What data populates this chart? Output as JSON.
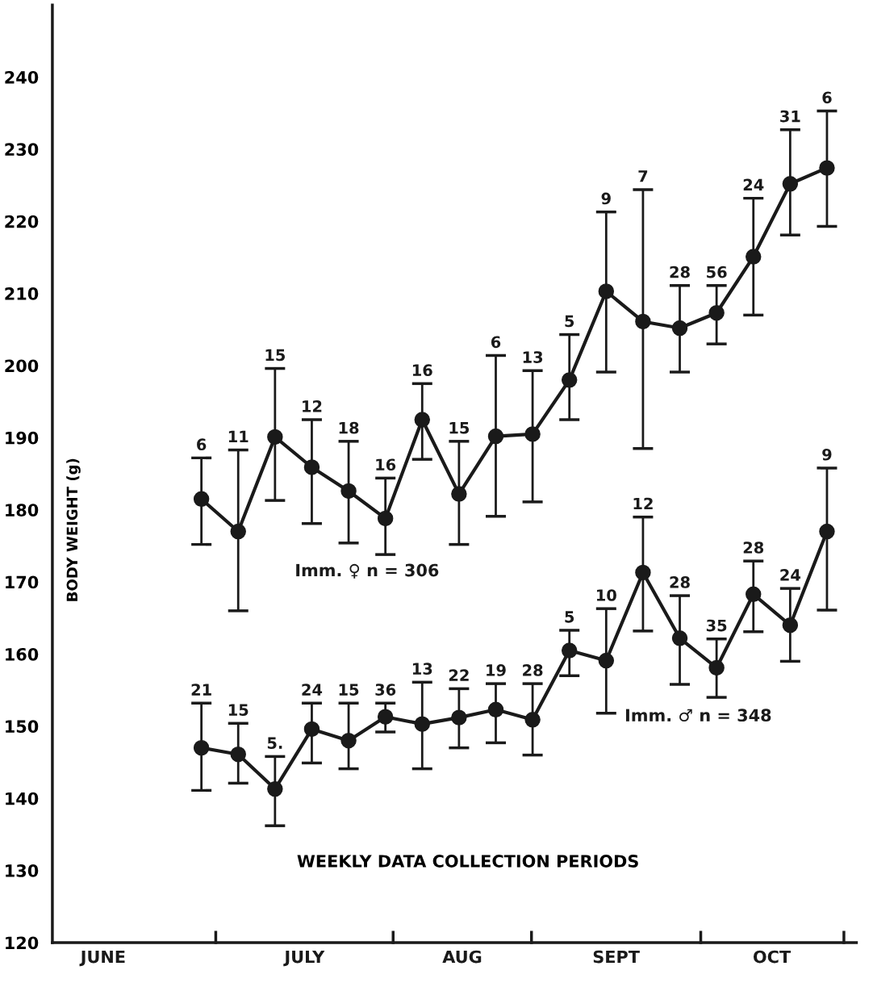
{
  "chart_data": {
    "type": "line",
    "xlabel": "WEEKLY DATA COLLECTION PERIODS",
    "ylabel": "BODY WEIGHT (g)",
    "categories": [
      null,
      null,
      null,
      null,
      null,
      null,
      null,
      null,
      null,
      null,
      null,
      null,
      null,
      null,
      null,
      null,
      null,
      null
    ],
    "ylim": [
      120,
      250
    ],
    "yticks": [
      120,
      130,
      140,
      150,
      160,
      170,
      180,
      190,
      200,
      210,
      220,
      230,
      240
    ],
    "marker": "circle",
    "line_style": "solid",
    "series": [
      {
        "name": "Imm. ♀ n = 306",
        "color": "#1a1a1a",
        "values": [
          181.5,
          177.0,
          190.1,
          185.9,
          182.6,
          178.8,
          192.5,
          182.2,
          190.2,
          190.5,
          198.0,
          210.3,
          206.1,
          205.2,
          207.3,
          215.1,
          225.2,
          227.4
        ],
        "errors": [
          [
            175.2,
            187.2
          ],
          [
            166.0,
            188.3
          ],
          [
            181.3,
            199.6
          ],
          [
            178.1,
            192.5
          ],
          [
            175.4,
            189.5
          ],
          [
            173.8,
            184.4
          ],
          [
            187.0,
            197.5
          ],
          [
            175.2,
            189.5
          ],
          [
            179.1,
            201.4
          ],
          [
            181.1,
            199.3
          ],
          [
            192.5,
            204.3
          ],
          [
            199.1,
            221.3
          ],
          [
            188.5,
            224.4
          ],
          [
            199.1,
            211.1
          ],
          [
            203.0,
            211.1
          ],
          [
            207.0,
            223.2
          ],
          [
            218.1,
            232.7
          ],
          [
            219.3,
            235.3
          ]
        ]
      },
      {
        "name": "Imm. ♂ n = 348",
        "color": "#1a1a1a",
        "values": [
          147.0,
          146.1,
          141.3,
          149.6,
          148.0,
          151.3,
          150.3,
          151.2,
          152.3,
          150.9,
          160.5,
          159.1,
          171.3,
          162.2,
          158.1,
          168.3,
          164.0,
          177.0
        ],
        "errors": [
          [
            141.1,
            153.2
          ],
          [
            142.1,
            150.4
          ],
          [
            136.2,
            145.8
          ],
          [
            144.9,
            153.2
          ],
          [
            144.1,
            153.2
          ],
          [
            149.2,
            153.2
          ],
          [
            144.1,
            156.1
          ],
          [
            147.0,
            155.2
          ],
          [
            147.7,
            155.9
          ],
          [
            146.0,
            155.9
          ],
          [
            157.0,
            163.3
          ],
          [
            151.8,
            166.3
          ],
          [
            163.2,
            179.0
          ],
          [
            155.8,
            168.1
          ],
          [
            154.0,
            162.1
          ],
          [
            163.1,
            172.9
          ],
          [
            159.0,
            169.1
          ],
          [
            166.1,
            185.8
          ]
        ]
      }
    ],
    "annotations": [
      "JUNE",
      "JULY",
      "AUG",
      "SEPT",
      "OCT",
      {
        "text": "6",
        "y": 187.2
      },
      {
        "text": "11",
        "y": 188.3
      },
      {
        "text": "15",
        "y": 199.6
      },
      {
        "text": "12",
        "y": 192.5
      },
      {
        "text": "18",
        "y": 189.5
      },
      {
        "text": "16",
        "y": 184.4
      },
      {
        "text": "16",
        "y": 197.5
      },
      {
        "text": "15",
        "y": 189.5
      },
      {
        "text": "6",
        "y": 201.4
      },
      {
        "text": "13",
        "y": 199.3
      },
      {
        "text": "5",
        "y": 204.3
      },
      {
        "text": "9",
        "y": 221.3
      },
      {
        "text": "7",
        "y": 224.4
      },
      {
        "text": "28",
        "y": 211.1
      },
      {
        "text": "56",
        "y": 211.1
      },
      {
        "text": "24",
        "y": 223.2
      },
      {
        "text": "31",
        "y": 232.7
      },
      {
        "text": "6",
        "y": 235.3
      },
      {
        "text": "21",
        "y": 153.2
      },
      {
        "text": "15",
        "y": 150.4
      },
      {
        "text": "5.",
        "y": 145.8
      },
      {
        "text": "24",
        "y": 153.2
      },
      {
        "text": "15",
        "y": 153.2
      },
      {
        "text": "36",
        "y": 153.2
      },
      {
        "text": "13",
        "y": 156.1
      },
      {
        "text": "22",
        "y": 155.2
      },
      {
        "text": "19",
        "y": 155.9
      },
      {
        "text": "28",
        "y": 155.9
      },
      {
        "text": "5",
        "y": 163.3
      },
      {
        "text": "10",
        "y": 166.3
      },
      {
        "text": "12",
        "y": 179.0
      },
      {
        "text": "28",
        "y": 168.1
      },
      {
        "text": "35",
        "y": 162.1
      },
      {
        "text": "28",
        "y": 172.9
      },
      {
        "text": "24",
        "y": 169.1
      },
      {
        "text": "9",
        "y": 185.8
      }
    ]
  }
}
